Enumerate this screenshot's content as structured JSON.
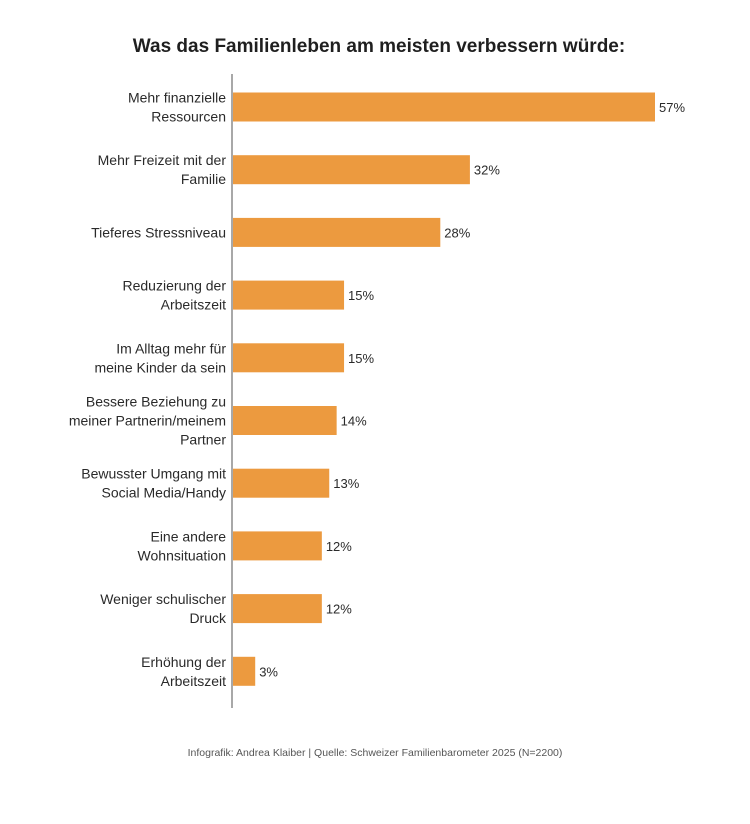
{
  "title": "Was das Familienleben am meisten verbessern würde:",
  "footer": "Infografik: Andrea Klaiber | Quelle: Schweizer Familienbarometer 2025 (N=2200)",
  "colors": {
    "bar": "#EC9A3F",
    "axis": "#8c8c8c"
  },
  "chart_data": {
    "type": "bar",
    "orientation": "horizontal",
    "title": "Was das Familienleben am meisten verbessern würde:",
    "unit": "%",
    "categories": [
      [
        "Mehr finanzielle",
        "Ressourcen"
      ],
      [
        "Mehr Freizeit mit der",
        "Familie"
      ],
      [
        "Tieferes Stressniveau"
      ],
      [
        "Reduzierung der",
        "Arbeitszeit"
      ],
      [
        "Im Alltag mehr für",
        "meine Kinder da sein"
      ],
      [
        "Bessere Beziehung zu",
        "meiner Partnerin/meinem",
        "Partner"
      ],
      [
        "Bewusster Umgang mit",
        "Social Media/Handy"
      ],
      [
        "Eine andere",
        "Wohnsituation"
      ],
      [
        "Weniger schulischer",
        "Druck"
      ],
      [
        "Erhöhung der",
        "Arbeitszeit"
      ]
    ],
    "values": [
      57,
      32,
      28,
      15,
      15,
      14,
      13,
      12,
      12,
      3
    ],
    "value_labels": [
      "57%",
      "32%",
      "28%",
      "15%",
      "15%",
      "14%",
      "13%",
      "12%",
      "12%",
      "3%"
    ],
    "xlim": [
      0,
      57
    ],
    "grid": false,
    "legend": "none"
  }
}
